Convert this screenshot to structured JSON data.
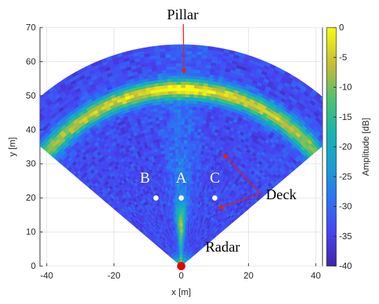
{
  "chart_data": {
    "type": "heatmap",
    "title": "",
    "xlabel": "x [m]",
    "ylabel": "y [m]",
    "xlim": [
      -42,
      42
    ],
    "ylim": [
      0,
      70
    ],
    "xticks": [
      -40,
      -20,
      0,
      20,
      40
    ],
    "yticks": [
      0,
      10,
      20,
      30,
      40,
      50,
      60,
      70
    ],
    "grid": true,
    "colormap": "parula",
    "colorbar": {
      "label": "Amplitude [dB]",
      "range": [
        -40,
        0
      ],
      "ticks": [
        0,
        -5,
        -10,
        -15,
        -20,
        -25,
        -30,
        -35,
        -40
      ]
    },
    "sector": {
      "apex": [
        0,
        0
      ],
      "range_max_m": 65,
      "half_angle_deg": 50
    },
    "features": {
      "pillar_band_range_m": 52,
      "deck_points": [
        {
          "name": "B",
          "x": -7.5,
          "y": 20
        },
        {
          "name": "A",
          "x": 0,
          "y": 20
        },
        {
          "name": "C",
          "x": 10,
          "y": 20
        }
      ],
      "radar": {
        "x": 0,
        "y": 0
      }
    },
    "annotations": [
      {
        "text": "Pillar",
        "target": [
          0,
          57
        ]
      },
      {
        "text": "Deck",
        "targets": [
          [
            12.5,
            33
          ],
          [
            11,
            17
          ]
        ]
      },
      {
        "text": "Radar",
        "target": [
          0,
          0
        ]
      }
    ]
  },
  "colors": {
    "background_min": "#3e26a8",
    "radar_marker": "#e60000",
    "arrow": "#e02020",
    "deck_point": "#ffffff"
  }
}
